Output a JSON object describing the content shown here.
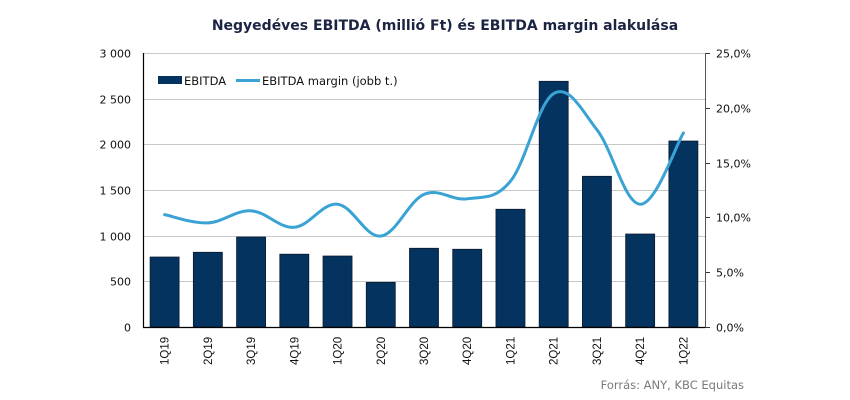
{
  "chart_data": {
    "type": "bar",
    "title": "Negyedéves EBITDA (millió Ft) és EBITDA margin alakulása",
    "categories": [
      "1Q19",
      "2Q19",
      "3Q19",
      "4Q19",
      "1Q20",
      "2Q20",
      "3Q20",
      "4Q20",
      "1Q21",
      "2Q21",
      "3Q21",
      "4Q21",
      "1Q22"
    ],
    "series": [
      {
        "name": "EBITDA",
        "type": "bar",
        "axis": "left",
        "color": "#04335f",
        "values": [
          766,
          818,
          985,
          797,
          777,
          489,
          862,
          851,
          1289,
          2690,
          1650,
          1018,
          2036
        ]
      },
      {
        "name": "EBITDA margin (jobb t.)",
        "type": "line",
        "axis": "right",
        "color": "#3aa3d3",
        "values": [
          10.25,
          9.5,
          10.6,
          9.1,
          11.2,
          8.3,
          12.1,
          11.7,
          13.3,
          21.3,
          18.0,
          11.2,
          17.7
        ]
      }
    ],
    "left_axis": {
      "ylim": [
        0,
        3000
      ],
      "ticks": [
        0,
        500,
        1000,
        1500,
        2000,
        2500,
        3000
      ],
      "tick_labels": [
        "0",
        "500",
        "1 000",
        "1 500",
        "2 000",
        "2 500",
        "3 000"
      ]
    },
    "right_axis": {
      "ylim": [
        0,
        25
      ],
      "ticks": [
        0,
        5,
        10,
        15,
        20,
        25
      ],
      "tick_labels": [
        "0,0%",
        "5,0%",
        "10,0%",
        "15,0%",
        "20,0%",
        "25,0%"
      ]
    },
    "grid": true,
    "legend": {
      "position": "top-left",
      "entries": [
        "EBITDA",
        "EBITDA margin (jobb t.)"
      ]
    },
    "xlabel": "",
    "ylabel": "",
    "source": "Forrás: ANY, KBC Equitas"
  }
}
